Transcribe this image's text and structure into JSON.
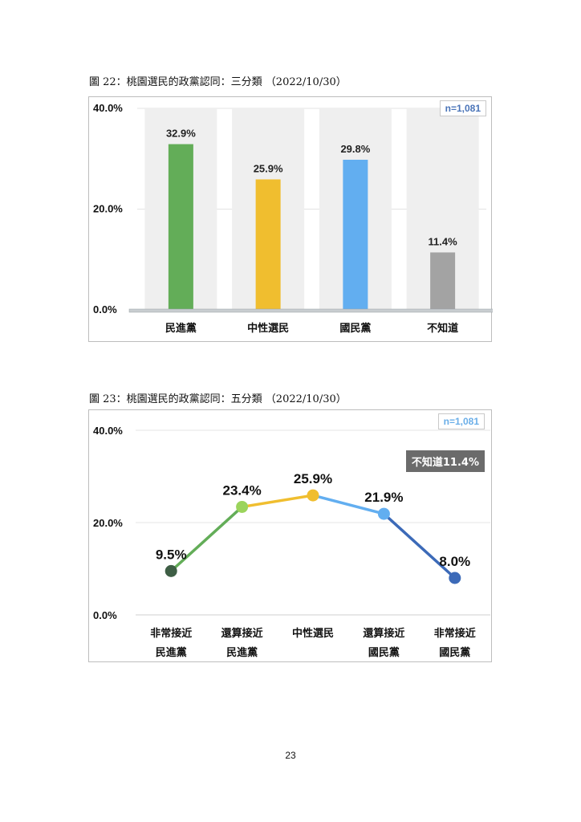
{
  "captions": {
    "fig22": "圖 22：桃園選民的政黨認同：三分類 （2022/10/30）",
    "fig23": "圖 23：桃園選民的政黨認同：五分類 （2022/10/30）"
  },
  "page_number": "23",
  "chart_data": [
    {
      "type": "bar",
      "title": "",
      "sample_size": "n=1,081",
      "categories": [
        "民進黨",
        "中性選民",
        "國民黨",
        "不知道"
      ],
      "values": [
        32.9,
        25.9,
        29.8,
        11.4
      ],
      "value_labels": [
        "32.9%",
        "25.9%",
        "29.8%",
        "11.4%"
      ],
      "colors": [
        "#63ad58",
        "#f0be2f",
        "#62aef0",
        "#a3a3a3"
      ],
      "background_bar_color": "#efefef",
      "yticks": [
        0,
        20,
        40
      ],
      "ytick_labels": [
        "0.0%",
        "20.0%",
        "40.0%"
      ],
      "ylim": [
        0,
        40
      ],
      "grid": true
    },
    {
      "type": "line",
      "title": "",
      "sample_size": "n=1,081",
      "categories": [
        "非常接近\n民進黨",
        "還算接近\n民進黨",
        "中性選民",
        "還算接近\n國民黨",
        "非常接近\n國民黨"
      ],
      "values": [
        9.5,
        23.4,
        25.9,
        21.9,
        8.0
      ],
      "value_labels": [
        "9.5%",
        "23.4%",
        "25.9%",
        "21.9%",
        "8.0%"
      ],
      "point_colors": [
        "#3e5e45",
        "#9bd45c",
        "#f0be2f",
        "#62aef0",
        "#3c6ab8"
      ],
      "segment_colors": [
        "#63ad58",
        "#f0be2f",
        "#62aef0",
        "#3c6ab8"
      ],
      "yticks": [
        0,
        20,
        40
      ],
      "ytick_labels": [
        "0.0%",
        "20.0%",
        "40.0%"
      ],
      "ylim": [
        0,
        40
      ],
      "grid": true,
      "annotation": "不知道11.4%"
    }
  ]
}
